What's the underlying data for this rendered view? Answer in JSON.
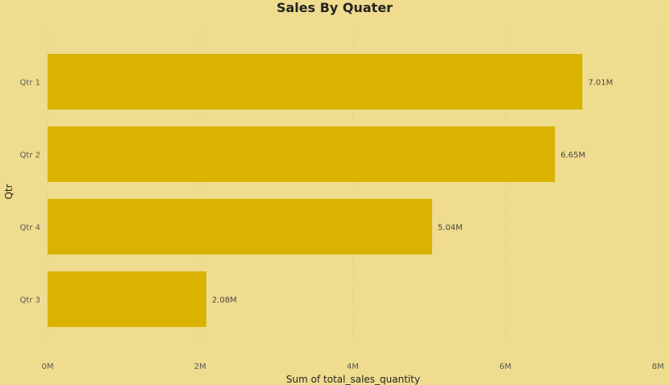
{
  "chart_data": {
    "type": "bar",
    "orientation": "horizontal",
    "title": "Sales By Quater",
    "xlabel": "Sum of total_sales_quantity",
    "ylabel": "Qtr",
    "categories": [
      "Qtr 1",
      "Qtr 2",
      "Qtr 4",
      "Qtr 3"
    ],
    "values": [
      7010000,
      6650000,
      5040000,
      2080000
    ],
    "data_labels": [
      "7.01M",
      "6.65M",
      "5.04M",
      "2.08M"
    ],
    "xlim": [
      0,
      8000000
    ],
    "x_ticks": [
      0,
      2000000,
      4000000,
      6000000,
      8000000
    ],
    "x_tick_labels": [
      "0M",
      "2M",
      "4M",
      "6M",
      "8M"
    ],
    "grid": true,
    "legend": "none",
    "colors": {
      "bar": "#d9b300",
      "background": "#efdc8f"
    }
  }
}
